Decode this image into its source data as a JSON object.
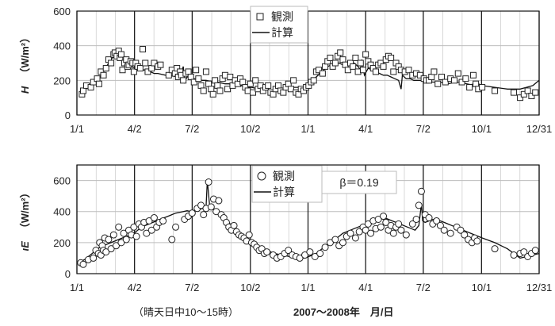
{
  "figure": {
    "footnote": "（晴天日中10～15時）",
    "xaxis_caption": "2007～2008年　月/日"
  },
  "chart_data": [
    {
      "type": "scatter",
      "ylabel_var": "H",
      "ylabel_unit": "（W/m²）",
      "ylim": [
        0,
        600
      ],
      "yticks": [
        0,
        200,
        400,
        600
      ],
      "xlim": [
        0,
        730
      ],
      "xtick_positions": [
        0,
        91,
        182,
        274,
        365,
        456,
        547,
        639,
        730
      ],
      "xtick_labels": [
        "1/1",
        "4/2",
        "7/2",
        "10/2",
        "1/1",
        "4/1",
        "7/2",
        "10/1",
        "12/31"
      ],
      "grid": true,
      "legend": {
        "position": "top-center",
        "entries": [
          "観測",
          "計算"
        ]
      },
      "annotation": "",
      "marker": "square",
      "series": [
        {
          "name": "観測",
          "x": [
            8,
            10,
            15,
            22,
            26,
            32,
            35,
            38,
            42,
            46,
            50,
            54,
            58,
            60,
            63,
            66,
            68,
            70,
            72,
            75,
            78,
            80,
            82,
            85,
            88,
            90,
            93,
            96,
            100,
            104,
            108,
            112,
            118,
            122,
            128,
            132,
            145,
            150,
            155,
            158,
            160,
            163,
            165,
            168,
            172,
            176,
            180,
            185,
            188,
            192,
            196,
            200,
            204,
            208,
            212,
            215,
            218,
            222,
            226,
            230,
            234,
            238,
            242,
            246,
            250,
            254,
            258,
            262,
            266,
            270,
            274,
            278,
            282,
            286,
            290,
            294,
            298,
            302,
            306,
            310,
            314,
            318,
            322,
            326,
            330,
            334,
            338,
            342,
            346,
            350,
            354,
            358,
            362,
            366,
            370,
            374,
            378,
            382,
            388,
            392,
            396,
            400,
            404,
            408,
            412,
            416,
            420,
            424,
            428,
            432,
            436,
            440,
            444,
            448,
            452,
            456,
            460,
            464,
            468,
            472,
            476,
            480,
            484,
            488,
            492,
            496,
            500,
            504,
            508,
            512,
            518,
            524,
            530,
            536,
            542,
            548,
            552,
            556,
            560,
            564,
            570,
            576,
            582,
            590,
            596,
            602,
            608,
            614,
            620,
            626,
            630,
            634,
            640,
            660,
            690,
            700,
            706,
            712,
            718,
            724
          ],
          "y": [
            120,
            140,
            170,
            160,
            190,
            210,
            180,
            250,
            230,
            270,
            320,
            300,
            350,
            360,
            340,
            370,
            330,
            350,
            260,
            300,
            320,
            280,
            290,
            310,
            300,
            250,
            300,
            280,
            270,
            380,
            300,
            250,
            270,
            300,
            280,
            290,
            230,
            260,
            240,
            270,
            220,
            250,
            230,
            200,
            240,
            250,
            220,
            190,
            260,
            210,
            170,
            140,
            250,
            180,
            150,
            120,
            200,
            170,
            140,
            210,
            230,
            150,
            220,
            170,
            200,
            180,
            210,
            190,
            160,
            140,
            180,
            130,
            200,
            150,
            170,
            140,
            160,
            170,
            130,
            120,
            150,
            170,
            140,
            130,
            160,
            180,
            150,
            200,
            130,
            120,
            150,
            140,
            160,
            170,
            190,
            200,
            250,
            260,
            240,
            280,
            310,
            330,
            280,
            300,
            340,
            360,
            320,
            290,
            260,
            300,
            280,
            330,
            250,
            300,
            260,
            350,
            310,
            290,
            270,
            250,
            290,
            300,
            280,
            320,
            340,
            330,
            250,
            300,
            280,
            260,
            250,
            260,
            230,
            240,
            230,
            210,
            200,
            200,
            220,
            250,
            180,
            220,
            190,
            210,
            200,
            240,
            190,
            210,
            160,
            230,
            180,
            150,
            160,
            140,
            130,
            100,
            120,
            140,
            110,
            130
          ]
        },
        {
          "name": "計算",
          "x": [
            8,
            14,
            20,
            26,
            32,
            38,
            44,
            50,
            56,
            62,
            68,
            74,
            80,
            86,
            92,
            98,
            104,
            110,
            116,
            122,
            128,
            134,
            140,
            146,
            152,
            158,
            164,
            168,
            170,
            174,
            180,
            186,
            192,
            198,
            204,
            210,
            216,
            222,
            228,
            234,
            240,
            246,
            252,
            258,
            264,
            270,
            276,
            282,
            288,
            294,
            300,
            306,
            312,
            318,
            324,
            330,
            336,
            342,
            348,
            354,
            360,
            366,
            372,
            378,
            384,
            390,
            396,
            402,
            408,
            414,
            420,
            426,
            432,
            438,
            444,
            448,
            450,
            454,
            460,
            466,
            472,
            478,
            484,
            490,
            496,
            502,
            508,
            512,
            514,
            520,
            526,
            532,
            538,
            544,
            550,
            556,
            562,
            568,
            574,
            580,
            586,
            592,
            598,
            604,
            610,
            616,
            622,
            628,
            634,
            640,
            660,
            680,
            700,
            710,
            720,
            730
          ],
          "y": [
            130,
            150,
            165,
            180,
            200,
            230,
            260,
            300,
            330,
            340,
            330,
            310,
            290,
            280,
            270,
            270,
            260,
            260,
            250,
            240,
            240,
            235,
            230,
            230,
            225,
            220,
            240,
            280,
            190,
            220,
            215,
            210,
            205,
            200,
            200,
            195,
            195,
            190,
            185,
            180,
            180,
            175,
            170,
            170,
            165,
            160,
            160,
            155,
            150,
            150,
            145,
            140,
            140,
            140,
            145,
            150,
            155,
            160,
            160,
            160,
            170,
            180,
            200,
            220,
            240,
            260,
            280,
            290,
            300,
            300,
            290,
            280,
            290,
            300,
            280,
            260,
            320,
            230,
            270,
            260,
            250,
            240,
            230,
            230,
            220,
            210,
            200,
            150,
            230,
            210,
            210,
            200,
            200,
            200,
            200,
            195,
            190,
            190,
            190,
            185,
            180,
            185,
            190,
            190,
            185,
            180,
            175,
            180,
            180,
            170,
            160,
            150,
            150,
            160,
            170,
            200
          ]
        }
      ]
    },
    {
      "type": "scatter",
      "ylabel_var": "ιE",
      "ylabel_unit": "（W/m²）",
      "ylim": [
        0,
        700
      ],
      "yticks": [
        0,
        200,
        400,
        600
      ],
      "xlim": [
        0,
        730
      ],
      "xtick_positions": [
        0,
        91,
        182,
        274,
        365,
        456,
        547,
        639,
        730
      ],
      "xtick_labels": [
        "1/1",
        "4/2",
        "7/2",
        "10/2",
        "1/1",
        "4/1",
        "7/2",
        "10/1",
        "12/31"
      ],
      "grid": true,
      "legend": {
        "position": "top-center",
        "entries": [
          "観測",
          "計算"
        ]
      },
      "annotation": "β＝0.19",
      "marker": "circle",
      "series": [
        {
          "name": "観測",
          "x": [
            6,
            10,
            18,
            26,
            30,
            34,
            36,
            38,
            40,
            42,
            44,
            46,
            50,
            54,
            58,
            62,
            66,
            70,
            74,
            78,
            82,
            86,
            90,
            94,
            98,
            102,
            106,
            110,
            114,
            118,
            122,
            126,
            130,
            136,
            150,
            156,
            170,
            176,
            182,
            190,
            196,
            200,
            204,
            208,
            212,
            216,
            220,
            224,
            228,
            232,
            236,
            240,
            244,
            248,
            252,
            256,
            260,
            264,
            268,
            272,
            276,
            280,
            284,
            288,
            292,
            296,
            300,
            310,
            316,
            322,
            328,
            334,
            340,
            346,
            352,
            360,
            368,
            376,
            384,
            392,
            400,
            408,
            414,
            420,
            426,
            432,
            440,
            446,
            452,
            456,
            460,
            464,
            468,
            472,
            476,
            480,
            484,
            488,
            492,
            496,
            500,
            504,
            508,
            512,
            520,
            530,
            536,
            540,
            544,
            550,
            556,
            562,
            568,
            574,
            580,
            590,
            600,
            606,
            612,
            618,
            624,
            628,
            632,
            660,
            690,
            700,
            706,
            712,
            718,
            724
          ],
          "y": [
            70,
            60,
            90,
            100,
            150,
            130,
            200,
            120,
            180,
            150,
            230,
            140,
            220,
            160,
            250,
            180,
            300,
            200,
            260,
            220,
            280,
            250,
            300,
            240,
            320,
            300,
            330,
            260,
            340,
            280,
            360,
            300,
            330,
            340,
            220,
            300,
            350,
            370,
            390,
            420,
            440,
            380,
            420,
            590,
            430,
            480,
            400,
            470,
            380,
            360,
            330,
            300,
            280,
            310,
            270,
            250,
            240,
            230,
            210,
            250,
            200,
            190,
            170,
            150,
            160,
            130,
            140,
            120,
            100,
            110,
            130,
            150,
            120,
            110,
            100,
            120,
            140,
            110,
            130,
            170,
            200,
            220,
            180,
            200,
            240,
            260,
            230,
            270,
            300,
            280,
            320,
            260,
            340,
            290,
            350,
            300,
            370,
            330,
            280,
            310,
            260,
            300,
            320,
            280,
            250,
            320,
            350,
            440,
            530,
            380,
            360,
            320,
            340,
            310,
            280,
            260,
            300,
            280,
            250,
            220,
            200,
            230,
            210,
            160,
            120,
            130,
            140,
            110,
            130,
            150
          ]
        },
        {
          "name": "計算",
          "x": [
            6,
            12,
            18,
            24,
            30,
            36,
            42,
            48,
            54,
            60,
            66,
            72,
            78,
            84,
            90,
            96,
            102,
            108,
            114,
            120,
            126,
            132,
            138,
            144,
            150,
            156,
            162,
            168,
            174,
            180,
            186,
            192,
            198,
            204,
            206,
            210,
            216,
            222,
            228,
            234,
            240,
            246,
            252,
            258,
            264,
            270,
            276,
            282,
            288,
            294,
            300,
            306,
            312,
            318,
            324,
            330,
            336,
            342,
            348,
            354,
            360,
            366,
            372,
            378,
            384,
            390,
            396,
            402,
            408,
            414,
            420,
            426,
            432,
            438,
            444,
            450,
            456,
            462,
            468,
            474,
            480,
            486,
            492,
            498,
            504,
            510,
            516,
            522,
            528,
            534,
            540,
            544,
            546,
            550,
            556,
            562,
            568,
            574,
            580,
            586,
            592,
            598,
            604,
            610,
            616,
            622,
            628,
            634,
            640,
            660,
            680,
            700,
            710,
            720,
            730
          ],
          "y": [
            80,
            90,
            110,
            130,
            150,
            170,
            180,
            190,
            200,
            210,
            220,
            230,
            240,
            250,
            260,
            280,
            300,
            310,
            320,
            330,
            340,
            350,
            360,
            370,
            380,
            390,
            395,
            400,
            405,
            400,
            405,
            410,
            420,
            430,
            600,
            420,
            410,
            400,
            380,
            360,
            330,
            300,
            280,
            260,
            240,
            220,
            200,
            180,
            170,
            160,
            150,
            140,
            130,
            125,
            120,
            115,
            110,
            110,
            105,
            100,
            100,
            110,
            120,
            130,
            150,
            170,
            190,
            200,
            220,
            240,
            260,
            270,
            280,
            290,
            300,
            310,
            320,
            330,
            340,
            350,
            360,
            360,
            350,
            340,
            330,
            320,
            310,
            300,
            290,
            280,
            310,
            450,
            340,
            330,
            340,
            350,
            345,
            340,
            330,
            320,
            310,
            300,
            290,
            280,
            270,
            260,
            250,
            240,
            230,
            200,
            160,
            100,
            110,
            120,
            130
          ]
        }
      ]
    }
  ]
}
